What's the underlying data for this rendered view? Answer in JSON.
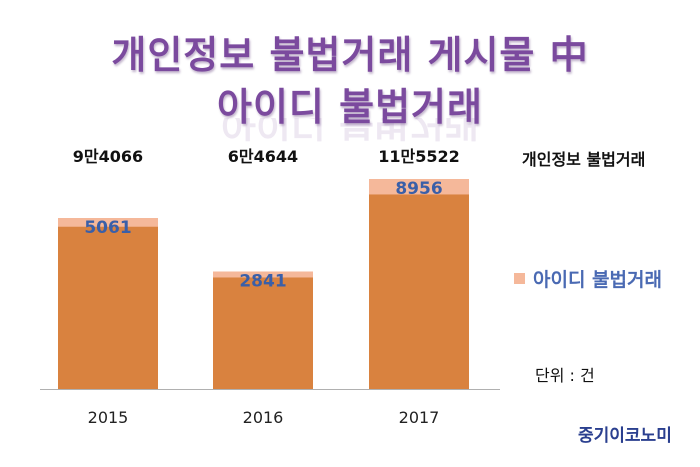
{
  "title_line1": "개인정보 불법거래 게시물 中",
  "title_line2": "아이디 불법거래",
  "unit": "단위 : 건",
  "source": "중기이코노미",
  "colors": {
    "title": "#7b4a9e",
    "total_bar": "#f5b89a",
    "id_bar": "#d9823f",
    "data_label": "#3a5fa8",
    "legend_text": "#4a6ab3",
    "axis": "#b0b0b0"
  },
  "chart_data": {
    "type": "bar",
    "stacked": "overlay",
    "categories": [
      "2015",
      "2016",
      "2017"
    ],
    "series": [
      {
        "name": "개인정보 불법거래",
        "values": [
          94066,
          64644,
          115522
        ],
        "labels": [
          "9만4066",
          "6만4644",
          "11만5522"
        ]
      },
      {
        "name": "아이디 불법거래",
        "values": [
          5061,
          2841,
          8956
        ],
        "labels": [
          "5061",
          "2841",
          "8956"
        ]
      }
    ],
    "legend": [
      "아이디 불법거래"
    ],
    "grid": false
  }
}
